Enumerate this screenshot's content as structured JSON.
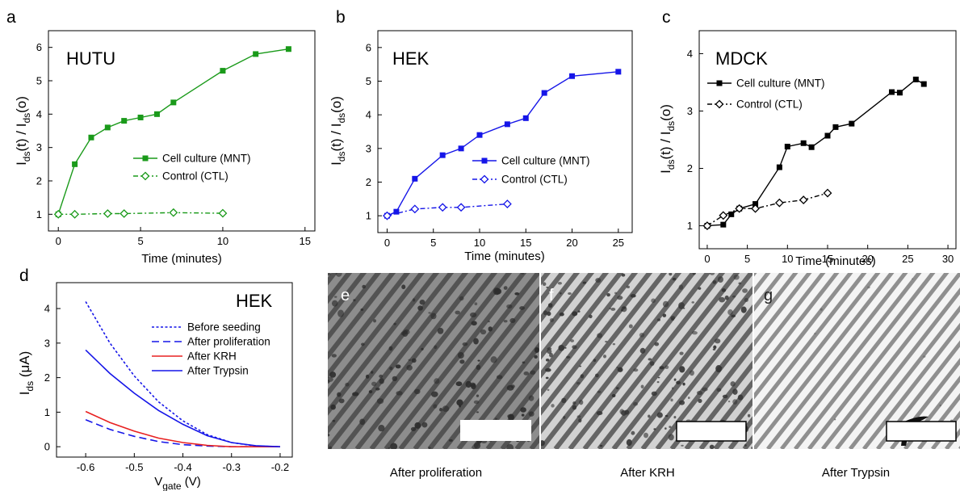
{
  "colors": {
    "green": "#1a9a1a",
    "blue": "#1515e8",
    "black": "#000000",
    "red": "#e82020"
  },
  "chart_data": [
    {
      "id": "a",
      "type": "line",
      "panel_label": "a",
      "annotation": "HUTU",
      "xlabel": "Time (minutes)",
      "ylabel_main": "I",
      "ylabel_sub1": "ds",
      "ylabel_mid": "(t) / I",
      "ylabel_sub2": "ds",
      "ylabel_end": "(o)",
      "xlim": [
        -0.6,
        15.6
      ],
      "ylim": [
        0.5,
        6.5
      ],
      "xticks": [
        0,
        5,
        10,
        15
      ],
      "yticks": [
        1,
        2,
        3,
        4,
        5,
        6
      ],
      "legend_position": "center-right",
      "series": [
        {
          "name": "Cell culture  (MNT)",
          "color": "#1a9a1a",
          "marker": "square-filled",
          "dash": "",
          "x": [
            0,
            1,
            2,
            3,
            4,
            5,
            6,
            7,
            10,
            12,
            14
          ],
          "y": [
            1.0,
            2.5,
            3.3,
            3.6,
            3.8,
            3.9,
            4.0,
            4.35,
            5.3,
            5.8,
            5.95
          ]
        },
        {
          "name": "Control (CTL)",
          "color": "#1a9a1a",
          "marker": "diamond-open",
          "dash": "6 3 2 3",
          "x": [
            0,
            1,
            3,
            4,
            7,
            10
          ],
          "y": [
            1.0,
            1.0,
            1.02,
            1.02,
            1.05,
            1.03
          ]
        }
      ]
    },
    {
      "id": "b",
      "type": "line",
      "panel_label": "b",
      "annotation": "HEK",
      "xlabel": "Time (minutes)",
      "ylabel_main": "I",
      "ylabel_sub1": "ds",
      "ylabel_mid": "(t) / I",
      "ylabel_sub2": "ds",
      "ylabel_end": "(o)",
      "xlim": [
        -1,
        26.5
      ],
      "ylim": [
        0.5,
        6.5
      ],
      "xticks": [
        0,
        5,
        10,
        15,
        20,
        25
      ],
      "yticks": [
        1,
        2,
        3,
        4,
        5,
        6
      ],
      "legend_position": "center-right",
      "series": [
        {
          "name": "Cell culture (MNT)",
          "color": "#1515e8",
          "marker": "square-filled",
          "dash": "",
          "x": [
            0,
            1,
            3,
            6,
            8,
            10,
            13,
            15,
            17,
            20,
            25
          ],
          "y": [
            1.0,
            1.12,
            2.1,
            2.8,
            3.0,
            3.4,
            3.72,
            3.9,
            4.65,
            5.15,
            5.28
          ]
        },
        {
          "name": "Control (CTL)",
          "color": "#1515e8",
          "marker": "diamond-open",
          "dash": "6 3 2 3",
          "x": [
            0,
            3,
            6,
            8,
            13
          ],
          "y": [
            1.0,
            1.2,
            1.25,
            1.25,
            1.35
          ]
        }
      ]
    },
    {
      "id": "c",
      "type": "line",
      "panel_label": "c",
      "annotation": "MDCK",
      "xlabel": "Time (minutes)",
      "ylabel_main": "I",
      "ylabel_sub1": "ds",
      "ylabel_mid": "(t) / I",
      "ylabel_sub2": "ds",
      "ylabel_end": "(o)",
      "xlim": [
        -1,
        31
      ],
      "ylim": [
        0.6,
        4.4
      ],
      "xticks": [
        0,
        5,
        10,
        15,
        20,
        25,
        30
      ],
      "yticks": [
        1,
        2,
        3,
        4
      ],
      "legend_position": "top-left",
      "series": [
        {
          "name": "Cell culture  (MNT)",
          "color": "#000000",
          "marker": "square-filled",
          "dash": "",
          "x": [
            0,
            2,
            3,
            4,
            6,
            9,
            10,
            12,
            13,
            15,
            16,
            18,
            23,
            24,
            26,
            27
          ],
          "y": [
            1.0,
            1.02,
            1.2,
            1.3,
            1.38,
            2.02,
            2.38,
            2.44,
            2.37,
            2.57,
            2.72,
            2.78,
            3.33,
            3.32,
            3.55,
            3.47
          ]
        },
        {
          "name": "Control (CTL)",
          "color": "#000000",
          "marker": "diamond-open",
          "dash": "6 3 2 3",
          "x": [
            0,
            2,
            4,
            6,
            9,
            12,
            15
          ],
          "y": [
            1.0,
            1.18,
            1.3,
            1.3,
            1.4,
            1.45,
            1.57
          ]
        }
      ]
    },
    {
      "id": "d",
      "type": "line",
      "panel_label": "d",
      "annotation": "HEK",
      "xlabel_main": "V",
      "xlabel_sub": "gate",
      "xlabel_end": " (V)",
      "ylabel_main": "I",
      "ylabel_sub": "ds",
      "ylabel_end": " (μA)",
      "xlim": [
        -0.66,
        -0.175
      ],
      "ylim": [
        -0.3,
        4.75
      ],
      "xticks": [
        -0.6,
        -0.5,
        -0.4,
        -0.3,
        -0.2
      ],
      "xticklabels": [
        "-0.6",
        "-0.5",
        "-0.4",
        "-0.3",
        "-0.2"
      ],
      "yticks": [
        0,
        1,
        2,
        3,
        4
      ],
      "legend_position": "top-right",
      "series": [
        {
          "name": "Before seeding",
          "color": "#1515e8",
          "dash": "3 2.5",
          "x": [
            -0.6,
            -0.55,
            -0.5,
            -0.45,
            -0.4,
            -0.35,
            -0.3,
            -0.25,
            -0.2
          ],
          "y": [
            4.2,
            3.0,
            2.05,
            1.3,
            0.75,
            0.35,
            0.12,
            0.02,
            0.0
          ]
        },
        {
          "name": "After proliferation",
          "color": "#1515e8",
          "dash": "9 5",
          "x": [
            -0.6,
            -0.55,
            -0.5,
            -0.45,
            -0.4,
            -0.35,
            -0.3,
            -0.25,
            -0.2
          ],
          "y": [
            0.78,
            0.5,
            0.3,
            0.15,
            0.06,
            0.02,
            0.0,
            0.0,
            0.0
          ]
        },
        {
          "name": "After KRH",
          "color": "#e82020",
          "dash": "",
          "x": [
            -0.6,
            -0.55,
            -0.5,
            -0.45,
            -0.4,
            -0.35,
            -0.3,
            -0.25,
            -0.2
          ],
          "y": [
            1.02,
            0.7,
            0.45,
            0.25,
            0.12,
            0.04,
            0.0,
            0.0,
            0.0
          ]
        },
        {
          "name": "After Trypsin",
          "color": "#1515e8",
          "dash": "",
          "x": [
            -0.6,
            -0.55,
            -0.5,
            -0.45,
            -0.4,
            -0.35,
            -0.3,
            -0.25,
            -0.2
          ],
          "y": [
            2.8,
            2.12,
            1.55,
            1.05,
            0.65,
            0.32,
            0.12,
            0.03,
            0.0
          ]
        }
      ]
    }
  ],
  "micrographs": [
    {
      "letter": "e",
      "caption": "After proliferation",
      "style": "proliferation"
    },
    {
      "letter": "f",
      "caption": "After KRH",
      "style": "krh"
    },
    {
      "letter": "g",
      "caption": "After Trypsin",
      "style": "trypsin"
    }
  ]
}
